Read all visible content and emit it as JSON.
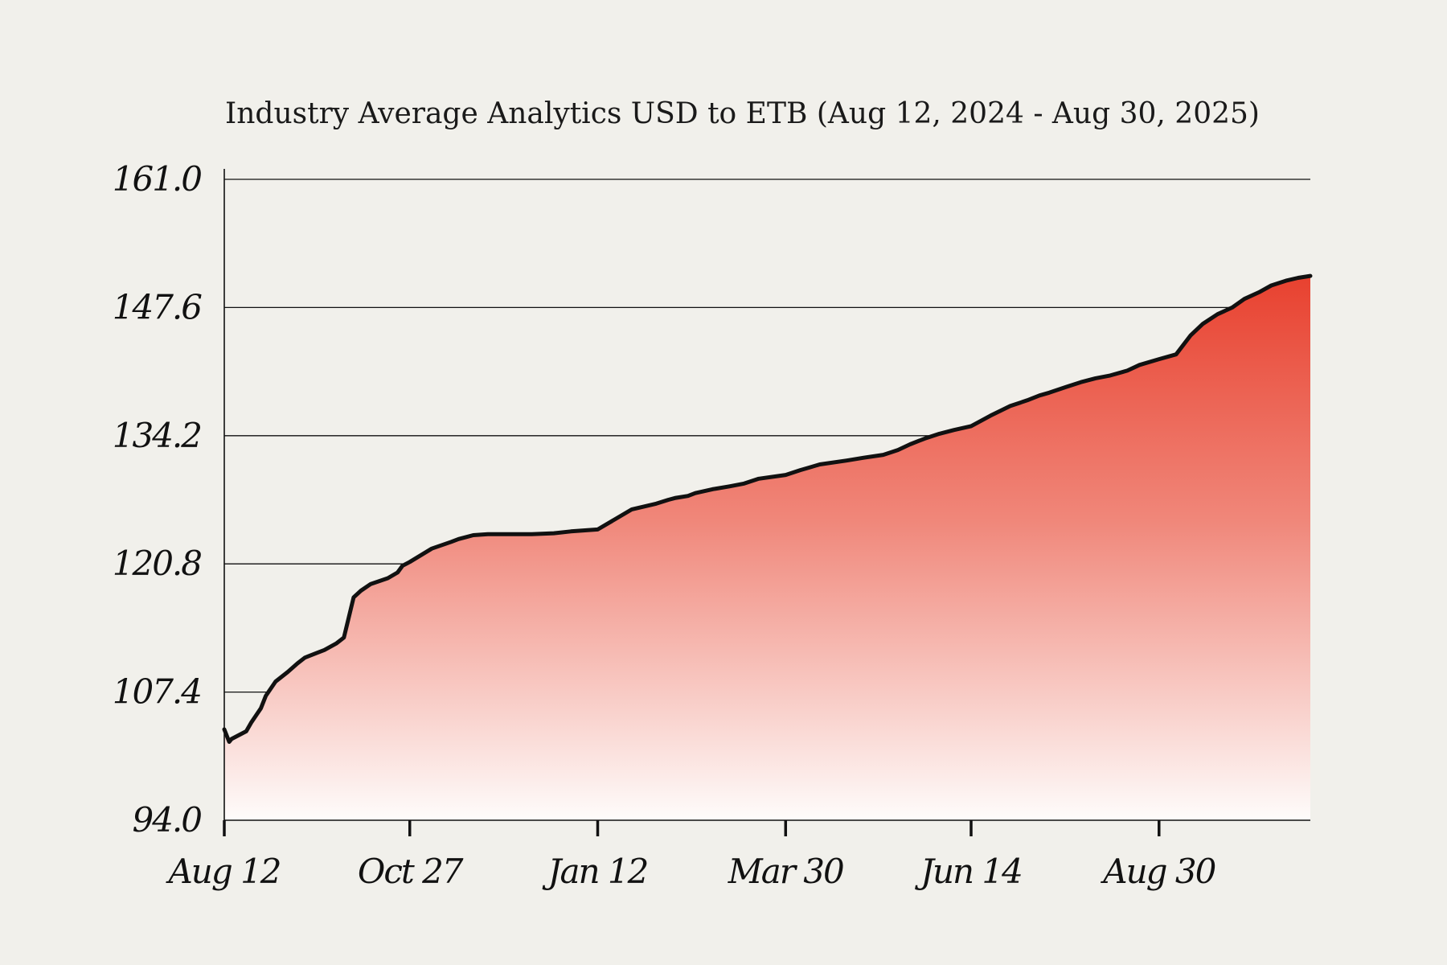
{
  "chart_data": {
    "type": "area",
    "title": "Industry Average Analytics  USD to ETB (Aug 12, 2024 - Aug 30, 2025)",
    "xlabel": "",
    "ylabel": "",
    "ylim": [
      94.0,
      161.0
    ],
    "yticks": [
      "94.0",
      "107.4",
      "120.8",
      "134.2",
      "147.6",
      "161.0"
    ],
    "xlim": [
      "2024-08-12",
      "2025-10-31"
    ],
    "xticks": [
      {
        "label": "Aug 12",
        "date": "2024-08-12"
      },
      {
        "label": "Oct 27",
        "date": "2024-10-27"
      },
      {
        "label": "Jan 12",
        "date": "2025-01-12"
      },
      {
        "label": "Mar 30",
        "date": "2025-03-30"
      },
      {
        "label": "Jun 14",
        "date": "2025-06-14"
      },
      {
        "label": "Aug 30",
        "date": "2025-08-30"
      }
    ],
    "grid": true,
    "fill_gradient": [
      "#e8412f",
      "#fefcfb"
    ],
    "series": [
      {
        "x": [
          "2024-08-12",
          "2024-08-14",
          "2024-08-15",
          "2024-08-21",
          "2024-08-23",
          "2024-08-27",
          "2024-08-29",
          "2024-09-02",
          "2024-09-07",
          "2024-09-11",
          "2024-09-14",
          "2024-09-19",
          "2024-09-22",
          "2024-09-27",
          "2024-09-30",
          "2024-10-04",
          "2024-10-07",
          "2024-10-11",
          "2024-10-18",
          "2024-10-22",
          "2024-10-24",
          "2024-10-27",
          "2024-11-05",
          "2024-11-13",
          "2024-11-16",
          "2024-11-19",
          "2024-11-22",
          "2024-11-28",
          "2024-12-03",
          "2024-12-09",
          "2024-12-16",
          "2024-12-25",
          "2025-01-01",
          "2025-01-12",
          "2025-01-26",
          "2025-02-05",
          "2025-02-10",
          "2025-02-13",
          "2025-02-18",
          "2025-02-21",
          "2025-02-28",
          "2025-03-07",
          "2025-03-13",
          "2025-03-19",
          "2025-03-30",
          "2025-04-05",
          "2025-04-09",
          "2025-04-13",
          "2025-04-24",
          "2025-05-01",
          "2025-05-09",
          "2025-05-15",
          "2025-05-20",
          "2025-05-26",
          "2025-06-01",
          "2025-06-07",
          "2025-06-14",
          "2025-06-22",
          "2025-06-30",
          "2025-07-07",
          "2025-07-12",
          "2025-07-16",
          "2025-07-23",
          "2025-07-29",
          "2025-08-04",
          "2025-08-10",
          "2025-08-17",
          "2025-08-22",
          "2025-08-30",
          "2025-09-06",
          "2025-09-12",
          "2025-09-17",
          "2025-09-23",
          "2025-09-29",
          "2025-10-04",
          "2025-10-10",
          "2025-10-15",
          "2025-10-21",
          "2025-10-26",
          "2025-10-31"
        ],
        "y": [
          103.5,
          102.2,
          102.5,
          103.3,
          104.2,
          105.7,
          107.0,
          108.5,
          109.5,
          110.4,
          111.0,
          111.5,
          111.8,
          112.5,
          113.1,
          117.3,
          118.0,
          118.7,
          119.3,
          119.9,
          120.6,
          121.0,
          122.4,
          123.1,
          123.4,
          123.6,
          123.8,
          123.9,
          123.9,
          123.9,
          123.9,
          124.0,
          124.2,
          124.4,
          126.5,
          127.1,
          127.5,
          127.7,
          127.9,
          128.2,
          128.6,
          128.9,
          129.2,
          129.7,
          130.1,
          130.6,
          130.9,
          131.2,
          131.6,
          131.9,
          132.2,
          132.7,
          133.3,
          133.9,
          134.4,
          134.8,
          135.2,
          136.3,
          137.3,
          137.9,
          138.4,
          138.7,
          139.3,
          139.8,
          140.2,
          140.5,
          141.0,
          141.6,
          142.2,
          142.7,
          144.7,
          145.9,
          146.9,
          147.6,
          148.5,
          149.2,
          149.9,
          150.4,
          150.7,
          150.9
        ]
      }
    ]
  }
}
